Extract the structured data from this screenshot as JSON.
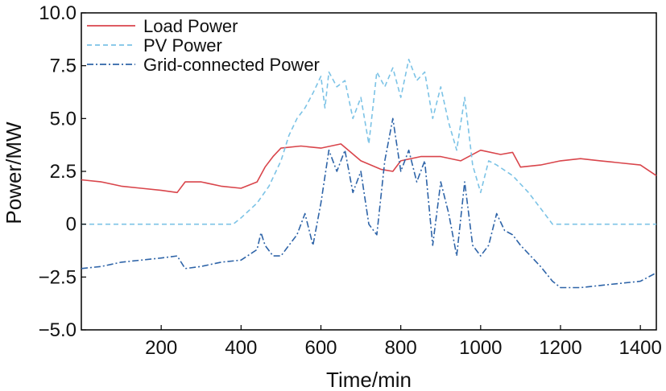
{
  "chart_data": {
    "type": "line",
    "xlabel": "Time/min",
    "ylabel": "Power/MW",
    "xlim": [
      0,
      1440
    ],
    "ylim": [
      -5.0,
      10.0
    ],
    "xticks": [
      200,
      400,
      600,
      800,
      1000,
      1200,
      1400
    ],
    "xtick_labels": [
      "200",
      "400",
      "600",
      "800",
      "1000",
      "1200",
      "1400"
    ],
    "yticks": [
      -5.0,
      -2.5,
      0,
      2.5,
      5.0,
      7.5,
      10.0
    ],
    "ytick_labels": [
      "−5.0",
      "−2.5",
      "0",
      "2.5",
      "5.0",
      "7.5",
      "10.0"
    ],
    "grid": false,
    "legend_position": "top-left",
    "series": [
      {
        "name": "Load Power",
        "color": "#d9454b",
        "style": "solid",
        "x": [
          0,
          50,
          100,
          150,
          200,
          240,
          260,
          300,
          350,
          400,
          440,
          460,
          480,
          500,
          550,
          600,
          650,
          700,
          750,
          780,
          800,
          850,
          900,
          950,
          1000,
          1050,
          1080,
          1100,
          1150,
          1200,
          1250,
          1300,
          1350,
          1400,
          1440
        ],
        "values": [
          2.1,
          2.0,
          1.8,
          1.7,
          1.6,
          1.5,
          2.0,
          2.0,
          1.8,
          1.7,
          2.0,
          2.7,
          3.2,
          3.6,
          3.7,
          3.6,
          3.8,
          3.0,
          2.6,
          2.5,
          3.0,
          3.2,
          3.2,
          3.0,
          3.5,
          3.3,
          3.4,
          2.7,
          2.8,
          3.0,
          3.1,
          3.0,
          2.9,
          2.8,
          2.3
        ]
      },
      {
        "name": "PV Power",
        "color": "#7cc3e6",
        "style": "dashed",
        "x": [
          0,
          380,
          400,
          440,
          470,
          500,
          520,
          540,
          560,
          580,
          600,
          610,
          620,
          640,
          660,
          680,
          700,
          720,
          740,
          760,
          780,
          800,
          820,
          840,
          860,
          880,
          900,
          920,
          940,
          960,
          980,
          1000,
          1020,
          1040,
          1080,
          1120,
          1160,
          1180,
          1440
        ],
        "values": [
          0,
          0,
          0.3,
          1.0,
          1.8,
          3.0,
          4.2,
          5.0,
          5.5,
          6.2,
          7.0,
          5.5,
          7.2,
          6.5,
          6.8,
          5.0,
          6.0,
          3.8,
          7.2,
          6.5,
          7.4,
          6.0,
          7.8,
          6.8,
          7.2,
          5.0,
          6.5,
          4.8,
          3.5,
          6.0,
          2.8,
          1.5,
          3.0,
          2.8,
          2.3,
          1.5,
          0.5,
          0,
          0
        ]
      },
      {
        "name": "Grid-connected Power",
        "color": "#2e64a8",
        "style": "dashdot",
        "x": [
          0,
          50,
          100,
          150,
          200,
          240,
          260,
          300,
          350,
          400,
          440,
          450,
          460,
          480,
          500,
          520,
          540,
          560,
          580,
          600,
          620,
          640,
          660,
          680,
          700,
          720,
          740,
          760,
          780,
          800,
          820,
          840,
          860,
          880,
          900,
          920,
          940,
          960,
          980,
          1000,
          1020,
          1040,
          1060,
          1080,
          1100,
          1150,
          1180,
          1200,
          1250,
          1300,
          1350,
          1400,
          1440
        ],
        "values": [
          -2.1,
          -2.0,
          -1.8,
          -1.7,
          -1.6,
          -1.5,
          -2.1,
          -2.0,
          -1.8,
          -1.7,
          -1.2,
          -0.4,
          -1.0,
          -1.5,
          -1.5,
          -1.0,
          -0.5,
          0.5,
          -1.0,
          1.0,
          3.5,
          2.5,
          3.5,
          1.5,
          2.5,
          0.0,
          -0.5,
          3.0,
          5.0,
          2.5,
          3.5,
          2.0,
          3.0,
          -1.0,
          2.0,
          0.5,
          -1.5,
          2.0,
          -1.0,
          -1.5,
          -1.0,
          0.5,
          -0.3,
          -0.5,
          -1.0,
          -2.0,
          -2.7,
          -3.0,
          -3.0,
          -2.9,
          -2.8,
          -2.7,
          -2.3
        ]
      }
    ]
  }
}
